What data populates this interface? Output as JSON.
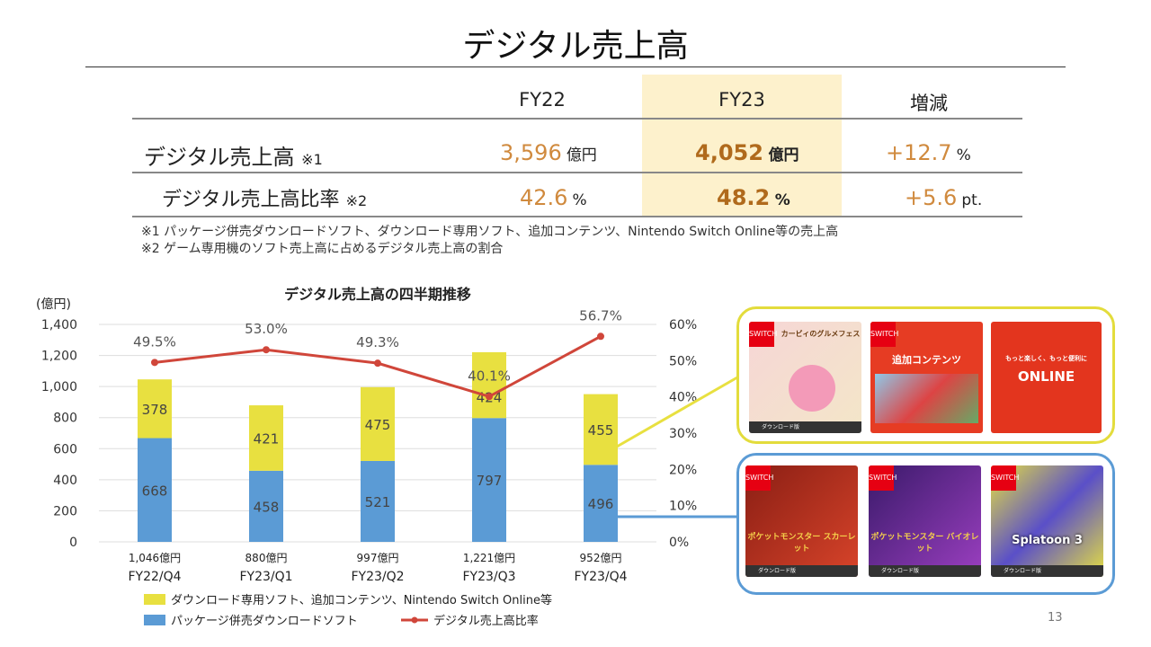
{
  "title": "デジタル売上高",
  "table": {
    "headers": [
      "FY22",
      "FY23",
      "増減"
    ],
    "rows": [
      {
        "label": "デジタル売上高",
        "note": "※1",
        "fy22": "3,596",
        "fy22_unit": "億円",
        "fy23": "4,052",
        "fy23_unit": "億円",
        "change": "+12.7",
        "change_unit": "%"
      },
      {
        "label": "デジタル売上高比率",
        "note": "※2",
        "fy22": "42.6",
        "fy22_unit": "%",
        "fy23": "48.2",
        "fy23_unit": "%",
        "change": "+5.6",
        "change_unit": "pt."
      }
    ],
    "notes": [
      "※1 パッケージ併売ダウンロードソフト、ダウンロード専用ソフト、追加コンテンツ、Nintendo Switch Online等の売上高",
      "※2 ゲーム専用機のソフト売上高に占めるデジタル売上高の割合"
    ]
  },
  "chart_data": {
    "type": "bar",
    "title": "デジタル売上高の四半期推移",
    "ylabel": "(億円)",
    "ylim": [
      0,
      1400
    ],
    "y2lim": [
      0,
      60
    ],
    "yticks": [
      "0",
      "200",
      "400",
      "600",
      "800",
      "1,000",
      "1,200",
      "1,400"
    ],
    "y2ticks": [
      "0%",
      "10%",
      "20%",
      "30%",
      "40%",
      "50%",
      "60%"
    ],
    "categories": [
      "FY22/Q4",
      "FY23/Q1",
      "FY23/Q2",
      "FY23/Q3",
      "FY23/Q4"
    ],
    "totals": [
      "1,046億円",
      "880億円",
      "997億円",
      "1,221億円",
      "952億円"
    ],
    "series": [
      {
        "name": "パッケージ併売ダウンロードソフト",
        "type": "bar",
        "color": "#5b9bd5",
        "values": [
          668,
          458,
          521,
          797,
          496
        ]
      },
      {
        "name": "ダウンロード専用ソフト、追加コンテンツ、Nintendo Switch Online等",
        "type": "bar",
        "color": "#e8e040",
        "values": [
          378,
          421,
          475,
          424,
          455
        ]
      },
      {
        "name": "デジタル売上高比率",
        "type": "line",
        "axis": "right",
        "color": "#d0463a",
        "values": [
          49.5,
          53.0,
          49.3,
          40.1,
          56.7
        ],
        "labels": [
          "49.5%",
          "53.0%",
          "49.3%",
          "40.1%",
          "56.7%"
        ]
      }
    ],
    "legend": "bottom"
  },
  "products": {
    "download_only": [
      {
        "name": "カービィのグルメフェス"
      },
      {
        "name": "追加コンテンツ"
      },
      {
        "name": "ONLINE"
      }
    ],
    "package_bundled": [
      {
        "name": "ポケットモンスター スカーレット"
      },
      {
        "name": "ポケットモンスター バイオレット"
      },
      {
        "name": "Splatoon 3"
      }
    ],
    "switch_logo": "SWITCH",
    "download_label": "ダウンロード版",
    "online_tagline": "もっと楽しく、もっと便利に"
  },
  "page_number": "13"
}
